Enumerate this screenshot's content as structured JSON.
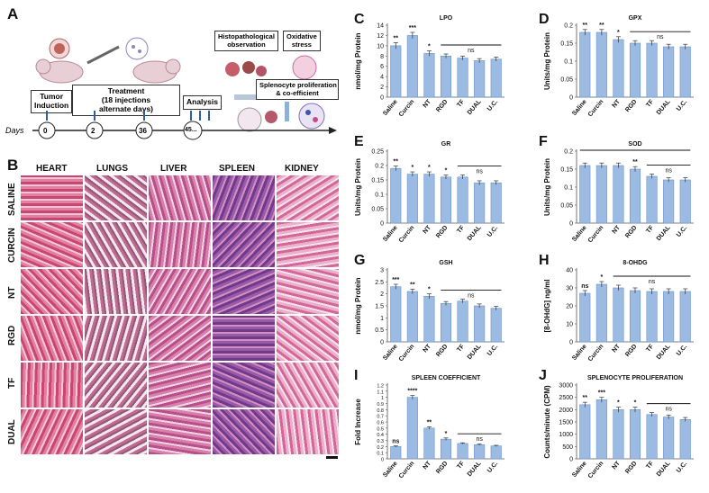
{
  "panel_a": {
    "letter": "A",
    "boxes": {
      "tumor": "Tumor\nInduction",
      "treatment": "Treatment\n(18 injections\nalternate days)",
      "analysis": "Analysis",
      "histo": "Histopathological\nobservation",
      "oxidative": "Oxidative\nstress",
      "spleno": "Splenocyte proliferation\n& co-efficient"
    },
    "days_label": "Days",
    "days": [
      "0",
      "2",
      "36",
      "45..."
    ]
  },
  "panel_b": {
    "letter": "B",
    "columns": [
      "HEART",
      "LUNGS",
      "LIVER",
      "SPLEEN",
      "KIDNEY"
    ],
    "rows": [
      "SALINE",
      "CURCIN",
      "NT",
      "RGD",
      "TF",
      "DUAL"
    ]
  },
  "colors": {
    "bar": "#9cbbe3",
    "bar_edge": "#6d93c8",
    "tissue_pink": "#d9739e",
    "tissue_purple": "#6e3a8c"
  },
  "chart_data": [
    {
      "letter": "C",
      "type": "bar",
      "title": "LPO",
      "ylabel": "nmol/mg Protein",
      "categories": [
        "Saline",
        "Curcin",
        "NT",
        "RGD",
        "TF",
        "DUAL",
        "U.C."
      ],
      "values": [
        10,
        12,
        8.5,
        8,
        7.6,
        7.1,
        7.4
      ],
      "errors": [
        0.6,
        0.6,
        0.5,
        0.4,
        0.4,
        0.4,
        0.4
      ],
      "ylim": [
        0,
        14
      ],
      "yticks": [
        "0",
        "2",
        "4",
        "6",
        "8",
        "10",
        "12",
        "14"
      ],
      "stars": [
        "**",
        "***",
        "*",
        "",
        "",
        "",
        ""
      ],
      "ns_from": 3,
      "ns_to": 6,
      "ns": "ns"
    },
    {
      "letter": "D",
      "type": "bar",
      "title": "GPX",
      "ylabel": "Units/mg Protein",
      "categories": [
        "Saline",
        "Curcin",
        "NT",
        "RGD",
        "TF",
        "DUAL",
        "U.C."
      ],
      "values": [
        0.18,
        0.18,
        0.16,
        0.15,
        0.15,
        0.14,
        0.14
      ],
      "errors": [
        0.008,
        0.008,
        0.008,
        0.007,
        0.007,
        0.007,
        0.007
      ],
      "ylim": [
        0,
        0.2
      ],
      "yticks": [
        "0",
        "0.05",
        "0.1",
        "0.15",
        "0.2"
      ],
      "stars": [
        "**",
        "**",
        "*",
        "",
        "",
        "",
        ""
      ],
      "ns_from": 3,
      "ns_to": 6,
      "ns": "ns"
    },
    {
      "letter": "E",
      "type": "bar",
      "title": "GR",
      "ylabel": "Units/mg Protein",
      "categories": [
        "Saline",
        "Curcin",
        "NT",
        "RGD",
        "TF",
        "DUAL",
        "U.C."
      ],
      "values": [
        0.19,
        0.17,
        0.17,
        0.16,
        0.16,
        0.14,
        0.14
      ],
      "errors": [
        0.008,
        0.008,
        0.008,
        0.007,
        0.007,
        0.007,
        0.007
      ],
      "ylim": [
        0,
        0.25
      ],
      "yticks": [
        "0",
        "0.05",
        "0.1",
        "0.15",
        "0.2",
        "0.25"
      ],
      "stars": [
        "**",
        "*",
        "*",
        "*",
        "",
        "",
        ""
      ],
      "ns_from": 4,
      "ns_to": 6,
      "ns": "ns"
    },
    {
      "letter": "F",
      "type": "bar",
      "title": "SOD",
      "ylabel": "Units/mg Protein",
      "categories": [
        "Saline",
        "Curcin",
        "NT",
        "RGD",
        "TF",
        "DUAL",
        "U.C."
      ],
      "values": [
        0.16,
        0.16,
        0.16,
        0.15,
        0.13,
        0.12,
        0.12
      ],
      "errors": [
        0.007,
        0.007,
        0.007,
        0.007,
        0.006,
        0.006,
        0.006
      ],
      "ylim": [
        0,
        0.2
      ],
      "yticks": [
        "0",
        "0.05",
        "0.1",
        "0.15",
        "0.2"
      ],
      "stars": [
        "",
        "",
        "",
        "**",
        "",
        "",
        ""
      ],
      "ns_from": 4,
      "ns_to": 6,
      "ns": "ns",
      "topline": true
    },
    {
      "letter": "G",
      "type": "bar",
      "title": "GSH",
      "ylabel": "nmol/mg Protein",
      "categories": [
        "Saline",
        "Curcin",
        "NT",
        "RGD",
        "TF",
        "DUAL",
        "U.C."
      ],
      "values": [
        2.3,
        2.1,
        1.9,
        1.6,
        1.7,
        1.5,
        1.4
      ],
      "errors": [
        0.1,
        0.1,
        0.1,
        0.08,
        0.08,
        0.08,
        0.08
      ],
      "ylim": [
        0,
        3
      ],
      "yticks": [
        "0",
        "0.5",
        "1",
        "1.5",
        "2",
        "2.5",
        "3"
      ],
      "stars": [
        "***",
        "**",
        "*",
        "",
        "",
        "",
        ""
      ],
      "ns_from": 3,
      "ns_to": 6,
      "ns": "ns"
    },
    {
      "letter": "H",
      "type": "bar",
      "title": "8-OHDG",
      "ylabel": "[8-OHdG] ng/ml",
      "categories": [
        "Saline",
        "Curcin",
        "NT",
        "RGD",
        "TF",
        "DUAL",
        "U.C."
      ],
      "values": [
        27,
        32,
        30,
        28.5,
        28,
        28,
        28
      ],
      "errors": [
        1.5,
        1.5,
        1.5,
        1.5,
        1.5,
        1.5,
        1.5
      ],
      "ylim": [
        0,
        40
      ],
      "yticks": [
        "0",
        "10",
        "20",
        "30",
        "40"
      ],
      "stars": [
        "ns",
        "*",
        "",
        "",
        "",
        "",
        ""
      ],
      "ns_from": 2,
      "ns_to": 6,
      "ns": "ns"
    },
    {
      "letter": "I",
      "type": "bar",
      "title": "SPLEEN COEFFICIENT",
      "ylabel": "Fold Increase",
      "categories": [
        "Saline",
        "Curcin",
        "NT",
        "RGD",
        "TF",
        "DUAL",
        "U.C."
      ],
      "values": [
        0.2,
        1.0,
        0.5,
        0.32,
        0.25,
        0.23,
        0.21
      ],
      "errors": [
        0.01,
        0.03,
        0.02,
        0.02,
        0.01,
        0.01,
        0.01
      ],
      "ylim": [
        0,
        1.2
      ],
      "yticks": [
        "0",
        "0.1",
        "0.2",
        "0.3",
        "0.4",
        "0.5",
        "0.6",
        "0.7",
        "0.8",
        "0.9",
        "1",
        "1.1",
        "1.2"
      ],
      "stars": [
        "ns",
        "****",
        "**",
        "*",
        "",
        "",
        ""
      ],
      "ns_from": 4,
      "ns_to": 6,
      "ns": "ns"
    },
    {
      "letter": "J",
      "type": "bar",
      "title": "SPLENOCYTE PROLIFERATION",
      "ylabel": "Counts/minute (CPM)",
      "categories": [
        "Saline",
        "Curcin",
        "NT",
        "RGD",
        "TF",
        "DUAL",
        "U.C."
      ],
      "values": [
        2200,
        2400,
        2000,
        2000,
        1800,
        1700,
        1600
      ],
      "errors": [
        100,
        100,
        100,
        100,
        80,
        80,
        80
      ],
      "ylim": [
        0,
        3000
      ],
      "yticks": [
        "0",
        "500",
        "1000",
        "1500",
        "2000",
        "2500",
        "3000"
      ],
      "stars": [
        "**",
        "***",
        "*",
        "*",
        "",
        "",
        ""
      ],
      "ns_from": 4,
      "ns_to": 6,
      "ns": "ns"
    }
  ]
}
